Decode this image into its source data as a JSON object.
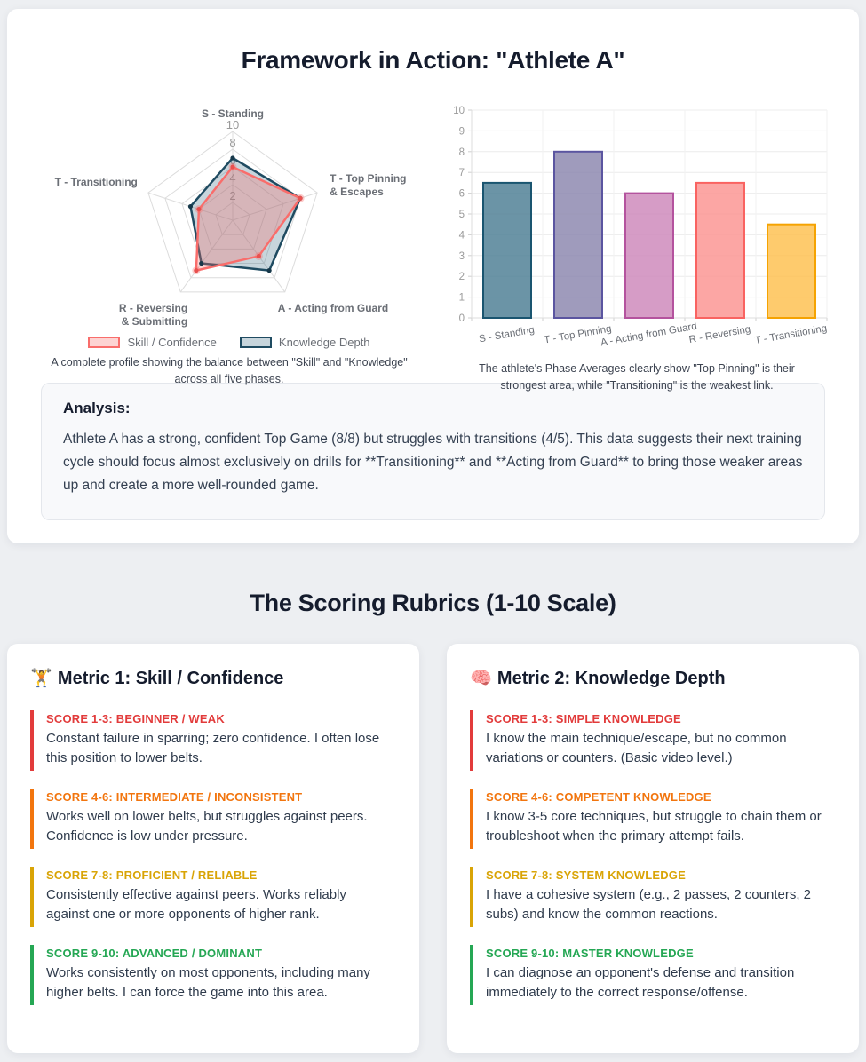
{
  "header": {
    "title": "Framework in Action: \"Athlete A\""
  },
  "charts": {
    "radar_caption": "A complete profile showing the balance between \"Skill\" and \"Knowledge\" across all five phases.",
    "bar_caption": "The athlete's Phase Averages clearly show \"Top Pinning\" is their strongest area, while \"Transitioning\" is the weakest link."
  },
  "analysis": {
    "heading": "Analysis:",
    "body": "Athlete A has a strong, confident Top Game (8/8) but struggles with transitions (4/5). This data suggests their next training cycle should focus almost exclusively on drills for **Transitioning** and **Acting from Guard** to bring those weaker areas up and create a more well-rounded game."
  },
  "rubrics": {
    "title": "The Scoring Rubrics (1-10 Scale)"
  },
  "metric_cards": [
    {
      "icon": "weightlifter-icon",
      "emoji": "🏋️",
      "title": "Metric 1: Skill / Confidence",
      "items": [
        {
          "label": "SCORE 1-3: BEGINNER / WEAK",
          "text": "Constant failure in sparring; zero confidence. I often lose this position to lower belts.",
          "color": "#e23b3b"
        },
        {
          "label": "SCORE 4-6: INTERMEDIATE / INCONSISTENT",
          "text": "Works well on lower belts, but struggles against peers. Confidence is low under pressure.",
          "color": "#f2750e"
        },
        {
          "label": "SCORE 7-8: PROFICIENT / RELIABLE",
          "text": "Consistently effective against peers. Works reliably against one or more opponents of higher rank.",
          "color": "#d9a406"
        },
        {
          "label": "SCORE 9-10: ADVANCED / DOMINANT",
          "text": "Works consistently on most opponents, including many higher belts. I can force the game into this area.",
          "color": "#25a754"
        }
      ]
    },
    {
      "icon": "brain-icon",
      "emoji": "🧠",
      "title": "Metric 2: Knowledge Depth",
      "items": [
        {
          "label": "SCORE 1-3: SIMPLE KNOWLEDGE",
          "text": "I know the main technique/escape, but no common variations or counters. (Basic video level.)",
          "color": "#e23b3b"
        },
        {
          "label": "SCORE 4-6: COMPETENT KNOWLEDGE",
          "text": "I know 3-5 core techniques, but struggle to chain them or troubleshoot when the primary attempt fails.",
          "color": "#f2750e"
        },
        {
          "label": "SCORE 7-8: SYSTEM KNOWLEDGE",
          "text": "I have a cohesive system (e.g., 2 passes, 2 counters, 2 subs) and know the common reactions.",
          "color": "#d9a406"
        },
        {
          "label": "SCORE 9-10: MASTER KNOWLEDGE",
          "text": "I can diagnose an opponent's defense and transition immediately to the correct response/offense.",
          "color": "#25a754"
        }
      ]
    }
  ],
  "chart_data": [
    {
      "type": "radar",
      "categories": [
        "S - Standing",
        "T - Top Pinning & Escapes",
        "A - Acting from Guard",
        "R - Reversing & Submitting",
        "T - Transitioning"
      ],
      "max": 10,
      "ticks": [
        2,
        4,
        6,
        8,
        10
      ],
      "legend_position": "bottom",
      "series": [
        {
          "name": "Skill / Confidence",
          "values": [
            6,
            8,
            5,
            7,
            4
          ],
          "line_color": "#f96d6b",
          "fill_color": "rgba(249,109,107,0.30)"
        },
        {
          "name": "Knowledge Depth",
          "values": [
            7,
            8,
            7,
            6,
            5
          ],
          "line_color": "#1f4b61",
          "fill_color": "rgba(70,115,140,0.30)"
        }
      ]
    },
    {
      "type": "bar",
      "title": "",
      "xlabel": "",
      "ylabel": "",
      "categories": [
        "S - Standing",
        "T - Top Pinning",
        "A - Acting from Guard",
        "R - Reversing",
        "T - Transitioning"
      ],
      "values": [
        6.5,
        8,
        6,
        6.5,
        4.5
      ],
      "bar_colors": [
        "#4b7d93",
        "#8a85ad",
        "#cd86b9",
        "#fb9290",
        "#fec04d"
      ],
      "bar_borders": [
        "#1a5570",
        "#5b55a0",
        "#b4539e",
        "#f96361",
        "#f5a302"
      ],
      "ylim": [
        0,
        10
      ],
      "grid": true
    }
  ]
}
